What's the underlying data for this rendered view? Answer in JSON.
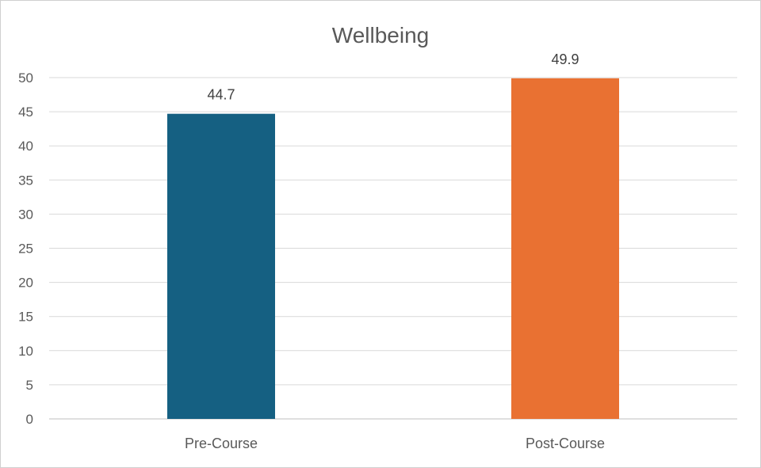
{
  "chart_data": {
    "type": "bar",
    "title": "Wellbeing",
    "categories": [
      "Pre-Course",
      "Post-Course"
    ],
    "values": [
      44.7,
      49.9
    ],
    "data_labels": [
      "44.7",
      "49.9"
    ],
    "colors": [
      "#156082",
      "#E97132"
    ],
    "ylim": [
      0,
      50
    ],
    "yticks": [
      "0",
      "5",
      "10",
      "15",
      "20",
      "25",
      "30",
      "35",
      "40",
      "45",
      "50"
    ],
    "grid": true,
    "xlabel": "",
    "ylabel": ""
  }
}
